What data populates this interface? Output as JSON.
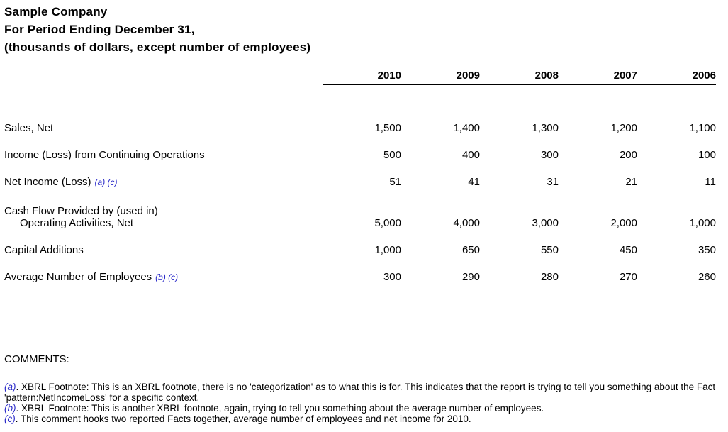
{
  "header": {
    "company": "Sample Company",
    "period": "For Period Ending December 31,",
    "units": "(thousands of dollars, except number of employees)"
  },
  "table": {
    "year_columns": [
      "2010",
      "2009",
      "2008",
      "2007",
      "2006"
    ],
    "rows": [
      {
        "label": "Sales, Net",
        "notes": "",
        "values": [
          "1,500",
          "1,400",
          "1,300",
          "1,200",
          "1,100"
        ]
      },
      {
        "label": "Income (Loss) from Continuing Operations",
        "notes": "",
        "values": [
          "500",
          "400",
          "300",
          "200",
          "100"
        ]
      },
      {
        "label": "Net Income (Loss)",
        "notes": "(a) (c)",
        "values": [
          "51",
          "41",
          "31",
          "21",
          "11"
        ]
      },
      {
        "label": "Cash Flow Provided by (used in)",
        "label_line2": "Operating Activities, Net",
        "notes": "",
        "values": [
          "5,000",
          "4,000",
          "3,000",
          "2,000",
          "1,000"
        ]
      },
      {
        "label": "Capital Additions",
        "notes": "",
        "values": [
          "1,000",
          "650",
          "550",
          "450",
          "350"
        ]
      },
      {
        "label": "Average Number of Employees",
        "notes": "(b) (c)",
        "values": [
          "300",
          "290",
          "280",
          "270",
          "260"
        ]
      }
    ]
  },
  "comments": {
    "heading": "COMMENTS:",
    "items": [
      {
        "marker": "(a)",
        "text": ". XBRL Footnote: This is an XBRL footnote, there is no 'categorization' as to what this is for. This indicates that the report is trying to tell you something about the Fact 'pattern:NetIncomeLoss' for a specific context."
      },
      {
        "marker": "(b)",
        "text": ". XBRL Footnote: This is another XBRL footnote, again, trying to tell you something about the average number of employees."
      },
      {
        "marker": "(c)",
        "text": ". This comment hooks two reported Facts together, average number of employees and net income for 2010."
      }
    ]
  },
  "colors": {
    "footnote_blue": "#2828c8",
    "text": "#000000",
    "background": "#ffffff"
  }
}
